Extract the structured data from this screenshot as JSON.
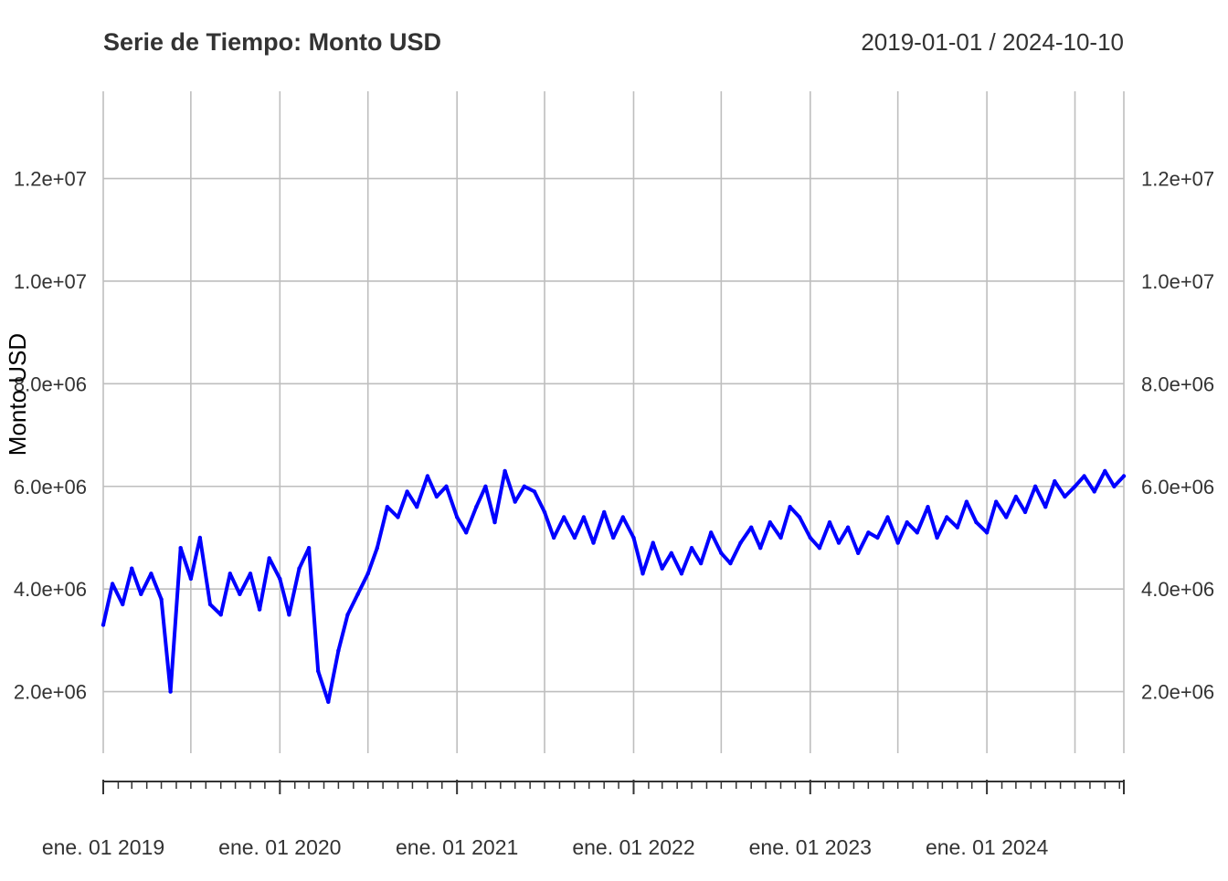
{
  "chart_data": {
    "type": "line",
    "title": "Serie de Tiempo: Monto USD",
    "date_range_label": "2019-01-01 / 2024-10-10",
    "ylabel": "Monto USD",
    "xlabel": "",
    "x_start": "2019-01-01",
    "x_end": "2024-10-10",
    "ylim": [
      800000,
      13700000
    ],
    "yticks": [
      2000000,
      4000000,
      6000000,
      8000000,
      10000000,
      12000000
    ],
    "ytick_labels": [
      "2.0e+06",
      "4.0e+06",
      "6.0e+06",
      "8.0e+06",
      "1.0e+07",
      "1.2e+07"
    ],
    "xtick_dates": [
      "2019-01-01",
      "2020-01-01",
      "2021-01-01",
      "2022-01-01",
      "2023-01-01",
      "2024-01-01"
    ],
    "xtick_labels": [
      "ene. 01 2019",
      "ene. 01 2020",
      "ene. 01 2021",
      "ene. 01 2022",
      "ene. 01 2023",
      "ene. 01 2024"
    ],
    "vertical_grid_dates": [
      "2019-01-01",
      "2019-07-01",
      "2020-01-01",
      "2020-07-01",
      "2021-01-01",
      "2021-07-01",
      "2022-01-01",
      "2022-07-01",
      "2023-01-01",
      "2023-07-01",
      "2024-01-01",
      "2024-07-01",
      "2024-10-10"
    ],
    "grid": true,
    "series": [
      {
        "name": "",
        "color": "#0000ff",
        "points": [
          [
            "2019-01-01",
            3300000
          ],
          [
            "2019-01-20",
            4100000
          ],
          [
            "2019-02-10",
            3700000
          ],
          [
            "2019-03-01",
            4400000
          ],
          [
            "2019-03-20",
            3900000
          ],
          [
            "2019-04-10",
            4300000
          ],
          [
            "2019-05-01",
            3800000
          ],
          [
            "2019-05-20",
            2000000
          ],
          [
            "2019-06-10",
            4800000
          ],
          [
            "2019-07-01",
            4200000
          ],
          [
            "2019-07-20",
            5000000
          ],
          [
            "2019-08-10",
            3700000
          ],
          [
            "2019-09-01",
            3500000
          ],
          [
            "2019-09-20",
            4300000
          ],
          [
            "2019-10-10",
            3900000
          ],
          [
            "2019-11-01",
            4300000
          ],
          [
            "2019-11-20",
            3600000
          ],
          [
            "2019-12-10",
            4600000
          ],
          [
            "2020-01-01",
            4200000
          ],
          [
            "2020-01-20",
            3500000
          ],
          [
            "2020-02-10",
            4400000
          ],
          [
            "2020-03-01",
            4800000
          ],
          [
            "2020-03-20",
            2400000
          ],
          [
            "2020-04-10",
            1800000
          ],
          [
            "2020-05-01",
            2800000
          ],
          [
            "2020-05-20",
            3500000
          ],
          [
            "2020-06-10",
            3900000
          ],
          [
            "2020-07-01",
            4300000
          ],
          [
            "2020-07-20",
            4800000
          ],
          [
            "2020-08-10",
            5600000
          ],
          [
            "2020-09-01",
            5400000
          ],
          [
            "2020-09-20",
            5900000
          ],
          [
            "2020-10-10",
            5600000
          ],
          [
            "2020-11-01",
            6200000
          ],
          [
            "2020-11-20",
            5800000
          ],
          [
            "2020-12-10",
            6000000
          ],
          [
            "2021-01-01",
            5400000
          ],
          [
            "2021-01-20",
            5100000
          ],
          [
            "2021-02-10",
            5600000
          ],
          [
            "2021-03-01",
            6000000
          ],
          [
            "2021-03-20",
            5300000
          ],
          [
            "2021-04-10",
            6300000
          ],
          [
            "2021-05-01",
            5700000
          ],
          [
            "2021-05-20",
            6000000
          ],
          [
            "2021-06-10",
            5900000
          ],
          [
            "2021-07-01",
            5500000
          ],
          [
            "2021-07-20",
            5000000
          ],
          [
            "2021-08-10",
            5400000
          ],
          [
            "2021-09-01",
            5000000
          ],
          [
            "2021-09-20",
            5400000
          ],
          [
            "2021-10-10",
            4900000
          ],
          [
            "2021-11-01",
            5500000
          ],
          [
            "2021-11-20",
            5000000
          ],
          [
            "2021-12-10",
            5400000
          ],
          [
            "2022-01-01",
            5000000
          ],
          [
            "2022-01-20",
            4300000
          ],
          [
            "2022-02-10",
            4900000
          ],
          [
            "2022-03-01",
            4400000
          ],
          [
            "2022-03-20",
            4700000
          ],
          [
            "2022-04-10",
            4300000
          ],
          [
            "2022-05-01",
            4800000
          ],
          [
            "2022-05-20",
            4500000
          ],
          [
            "2022-06-10",
            5100000
          ],
          [
            "2022-07-01",
            4700000
          ],
          [
            "2022-07-20",
            4500000
          ],
          [
            "2022-08-10",
            4900000
          ],
          [
            "2022-09-01",
            5200000
          ],
          [
            "2022-09-20",
            4800000
          ],
          [
            "2022-10-10",
            5300000
          ],
          [
            "2022-11-01",
            5000000
          ],
          [
            "2022-11-20",
            5600000
          ],
          [
            "2022-12-10",
            5400000
          ],
          [
            "2023-01-01",
            5000000
          ],
          [
            "2023-01-20",
            4800000
          ],
          [
            "2023-02-10",
            5300000
          ],
          [
            "2023-03-01",
            4900000
          ],
          [
            "2023-03-20",
            5200000
          ],
          [
            "2023-04-10",
            4700000
          ],
          [
            "2023-05-01",
            5100000
          ],
          [
            "2023-05-20",
            5000000
          ],
          [
            "2023-06-10",
            5400000
          ],
          [
            "2023-07-01",
            4900000
          ],
          [
            "2023-07-20",
            5300000
          ],
          [
            "2023-08-10",
            5100000
          ],
          [
            "2023-09-01",
            5600000
          ],
          [
            "2023-09-20",
            5000000
          ],
          [
            "2023-10-10",
            5400000
          ],
          [
            "2023-11-01",
            5200000
          ],
          [
            "2023-11-20",
            5700000
          ],
          [
            "2023-12-10",
            5300000
          ],
          [
            "2024-01-01",
            5100000
          ],
          [
            "2024-01-20",
            5700000
          ],
          [
            "2024-02-10",
            5400000
          ],
          [
            "2024-03-01",
            5800000
          ],
          [
            "2024-03-20",
            5500000
          ],
          [
            "2024-04-10",
            6000000
          ],
          [
            "2024-05-01",
            5600000
          ],
          [
            "2024-05-20",
            6100000
          ],
          [
            "2024-06-10",
            5800000
          ],
          [
            "2024-07-01",
            6000000
          ],
          [
            "2024-07-20",
            6200000
          ],
          [
            "2024-08-10",
            5900000
          ],
          [
            "2024-09-01",
            6300000
          ],
          [
            "2024-09-20",
            6000000
          ],
          [
            "2024-10-10",
            6200000
          ]
        ]
      }
    ]
  }
}
